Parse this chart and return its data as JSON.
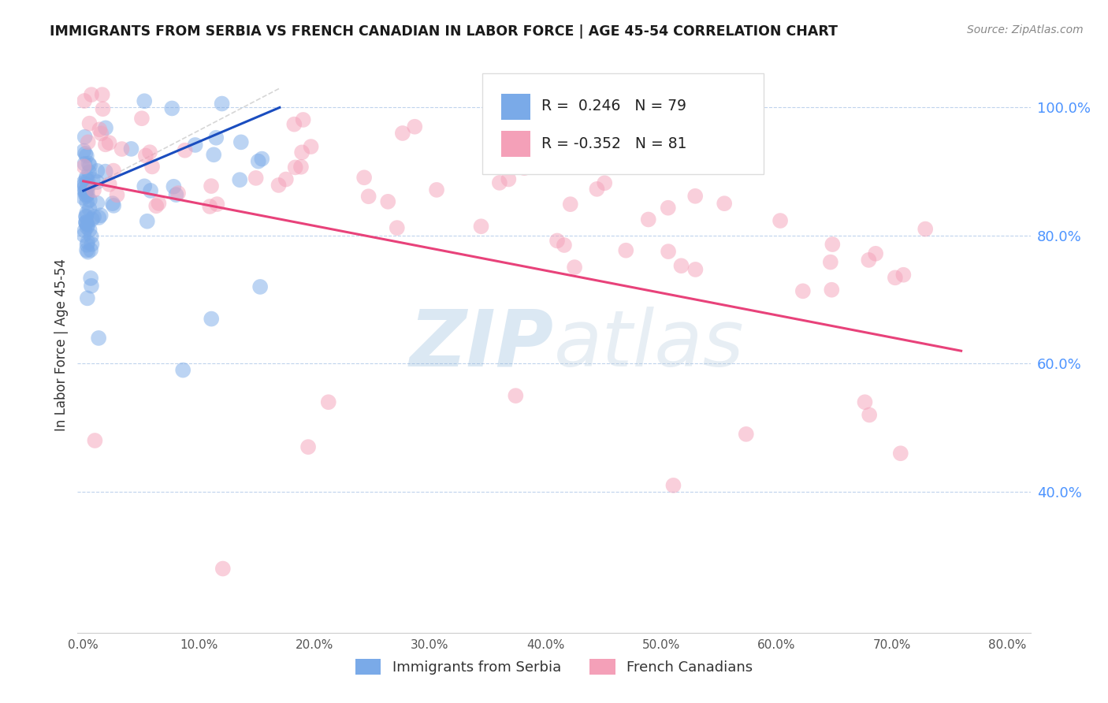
{
  "title": "IMMIGRANTS FROM SERBIA VS FRENCH CANADIAN IN LABOR FORCE | AGE 45-54 CORRELATION CHART",
  "source": "Source: ZipAtlas.com",
  "ylabel": "In Labor Force | Age 45-54",
  "xlim": [
    -0.005,
    0.82
  ],
  "ylim": [
    0.18,
    1.08
  ],
  "xticks": [
    0.0,
    0.1,
    0.2,
    0.3,
    0.4,
    0.5,
    0.6,
    0.7,
    0.8
  ],
  "yticks_right": [
    0.4,
    0.6,
    0.8,
    1.0
  ],
  "blue_R": 0.246,
  "blue_N": 79,
  "pink_R": -0.352,
  "pink_N": 81,
  "blue_color": "#7aaae8",
  "pink_color": "#f4a0b8",
  "blue_line_color": "#1a4dbf",
  "pink_line_color": "#e8427a",
  "ref_line_color": "#cccccc",
  "watermark_color": "#c5d8f0",
  "background_color": "#ffffff",
  "grid_color": "#b0c8e8",
  "right_axis_color": "#4d94ff",
  "title_color": "#1a1a1a",
  "source_color": "#888888"
}
